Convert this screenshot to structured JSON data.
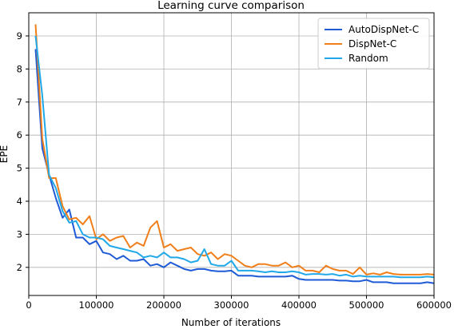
{
  "chart_data": {
    "type": "line",
    "title": "Learning curve comparison",
    "xlabel": "Number of iterations",
    "ylabel": "EPE",
    "xlim": [
      0,
      600000
    ],
    "ylim": [
      1.15,
      9.7
    ],
    "xticks": [
      0,
      100000,
      200000,
      300000,
      400000,
      500000,
      600000
    ],
    "yticks": [
      2,
      3,
      4,
      5,
      6,
      7,
      8,
      9
    ],
    "grid": true,
    "legend_position": "top-right",
    "x": [
      10000,
      20000,
      30000,
      40000,
      50000,
      60000,
      70000,
      80000,
      90000,
      100000,
      110000,
      120000,
      130000,
      140000,
      150000,
      160000,
      170000,
      180000,
      190000,
      200000,
      210000,
      220000,
      230000,
      240000,
      250000,
      260000,
      270000,
      280000,
      290000,
      300000,
      310000,
      320000,
      330000,
      340000,
      350000,
      360000,
      370000,
      380000,
      390000,
      400000,
      410000,
      420000,
      430000,
      440000,
      450000,
      460000,
      470000,
      480000,
      490000,
      500000,
      510000,
      520000,
      530000,
      540000,
      550000,
      560000,
      570000,
      580000,
      590000,
      600000
    ],
    "series": [
      {
        "name": "AutoDispNet-C",
        "color": "#1f5bd6",
        "values": [
          8.6,
          5.6,
          4.8,
          4.1,
          3.5,
          3.75,
          2.9,
          2.9,
          2.7,
          2.8,
          2.45,
          2.4,
          2.25,
          2.35,
          2.2,
          2.2,
          2.25,
          2.05,
          2.1,
          2.0,
          2.15,
          2.05,
          1.95,
          1.9,
          1.95,
          1.95,
          1.9,
          1.88,
          1.88,
          1.9,
          1.75,
          1.75,
          1.75,
          1.72,
          1.72,
          1.72,
          1.72,
          1.72,
          1.75,
          1.65,
          1.62,
          1.62,
          1.62,
          1.62,
          1.62,
          1.6,
          1.6,
          1.58,
          1.58,
          1.62,
          1.55,
          1.55,
          1.55,
          1.52,
          1.52,
          1.52,
          1.52,
          1.52,
          1.55,
          1.52
        ]
      },
      {
        "name": "DispNet-C",
        "color": "#f07f1a",
        "values": [
          9.35,
          5.9,
          4.7,
          4.7,
          3.85,
          3.45,
          3.5,
          3.3,
          3.55,
          2.85,
          3.0,
          2.8,
          2.9,
          2.95,
          2.6,
          2.75,
          2.65,
          3.2,
          3.4,
          2.6,
          2.7,
          2.5,
          2.55,
          2.6,
          2.4,
          2.35,
          2.45,
          2.25,
          2.4,
          2.35,
          2.2,
          2.05,
          2.0,
          2.1,
          2.1,
          2.05,
          2.05,
          2.15,
          2.0,
          2.05,
          1.9,
          1.9,
          1.85,
          2.05,
          1.95,
          1.9,
          1.9,
          1.8,
          2.0,
          1.78,
          1.82,
          1.78,
          1.85,
          1.8,
          1.78,
          1.78,
          1.78,
          1.78,
          1.8,
          1.78
        ]
      },
      {
        "name": "Random",
        "color": "#21a8e8",
        "values": [
          9.0,
          7.2,
          4.8,
          4.4,
          3.7,
          3.35,
          3.4,
          3.0,
          2.9,
          2.9,
          2.85,
          2.65,
          2.6,
          2.55,
          2.5,
          2.45,
          2.3,
          2.35,
          2.3,
          2.45,
          2.3,
          2.3,
          2.25,
          2.15,
          2.2,
          2.55,
          2.1,
          2.05,
          2.05,
          2.2,
          1.9,
          1.9,
          1.9,
          1.88,
          1.85,
          1.88,
          1.85,
          1.85,
          1.88,
          1.85,
          1.78,
          1.8,
          1.8,
          1.78,
          1.8,
          1.75,
          1.78,
          1.72,
          1.75,
          1.72,
          1.72,
          1.72,
          1.72,
          1.72,
          1.7,
          1.7,
          1.7,
          1.7,
          1.72,
          1.7
        ]
      }
    ]
  }
}
